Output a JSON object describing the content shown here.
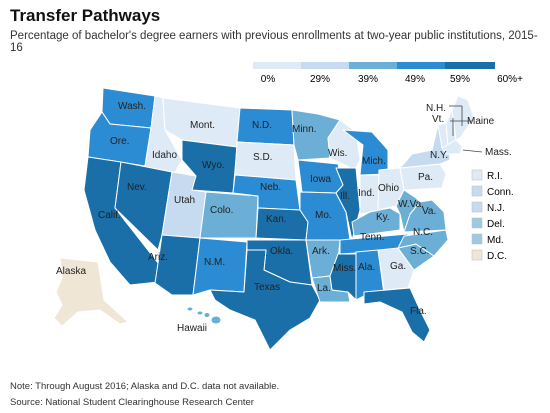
{
  "title": "Transfer Pathways",
  "subtitle": "Percentage of bachelor's degree earners with previous enrollments at two-year public institutions, 2015-16",
  "note": "Note: Through August 2016; Alaska and D.C. data not available.",
  "source": "Source: National Student Clearinghouse Research Center",
  "legend": {
    "labels": [
      "0%",
      "29%",
      "39%",
      "49%",
      "59%",
      "60%+"
    ],
    "colors": [
      "#deebf7",
      "#c6dbef",
      "#6baed6",
      "#2b8cd3",
      "#1b6fa8"
    ]
  },
  "na_color": "#efe6d6",
  "small_states": [
    {
      "label": "R.I.",
      "color": "#deebf7"
    },
    {
      "label": "Conn.",
      "color": "#c6dbef"
    },
    {
      "label": "N.J.",
      "color": "#c6dbef"
    },
    {
      "label": "Del.",
      "color": "#9ecae1"
    },
    {
      "label": "Md.",
      "color": "#9ecae1"
    },
    {
      "label": "D.C.",
      "color": "#efe6d6"
    }
  ],
  "states": [
    {
      "label": "Wash.",
      "color": "#2b8cd3"
    },
    {
      "label": "Ore.",
      "color": "#2b8cd3"
    },
    {
      "label": "Calif.",
      "color": "#1b6fa8"
    },
    {
      "label": "Idaho",
      "color": "#deebf7"
    },
    {
      "label": "Nev.",
      "color": "#1b6fa8"
    },
    {
      "label": "Utah",
      "color": "#c6dbef"
    },
    {
      "label": "Ariz.",
      "color": "#1b6fa8"
    },
    {
      "label": "Mont.",
      "color": "#deebf7"
    },
    {
      "label": "Wyo.",
      "color": "#1b6fa8"
    },
    {
      "label": "Colo.",
      "color": "#6baed6"
    },
    {
      "label": "N.M.",
      "color": "#2b8cd3"
    },
    {
      "label": "N.D.",
      "color": "#2b8cd3"
    },
    {
      "label": "S.D.",
      "color": "#deebf7"
    },
    {
      "label": "Neb.",
      "color": "#2b8cd3"
    },
    {
      "label": "Kan.",
      "color": "#1b6fa8"
    },
    {
      "label": "Okla.",
      "color": "#1b6fa8"
    },
    {
      "label": "Texas",
      "color": "#1b6fa8"
    },
    {
      "label": "Minn.",
      "color": "#6baed6"
    },
    {
      "label": "Iowa",
      "color": "#2b8cd3"
    },
    {
      "label": "Mo.",
      "color": "#2b8cd3"
    },
    {
      "label": "Ark.",
      "color": "#6baed6"
    },
    {
      "label": "La.",
      "color": "#6baed6"
    },
    {
      "label": "Wis.",
      "color": "#deebf7"
    },
    {
      "label": "Ill.",
      "color": "#1b6fa8"
    },
    {
      "label": "Mich.",
      "color": "#2b8cd3"
    },
    {
      "label": "Ind.",
      "color": "#deebf7"
    },
    {
      "label": "Ohio",
      "color": "#deebf7"
    },
    {
      "label": "Ky.",
      "color": "#6baed6"
    },
    {
      "label": "Tenn.",
      "color": "#2b8cd3"
    },
    {
      "label": "Miss.",
      "color": "#1b6fa8"
    },
    {
      "label": "Ala.",
      "color": "#2b8cd3"
    },
    {
      "label": "Ga.",
      "color": "#deebf7"
    },
    {
      "label": "Fla.",
      "color": "#1b6fa8"
    },
    {
      "label": "S.C.",
      "color": "#6baed6"
    },
    {
      "label": "N.C.",
      "color": "#6baed6"
    },
    {
      "label": "Va.",
      "color": "#6baed6"
    },
    {
      "label": "W.Va.",
      "color": "#6baed6"
    },
    {
      "label": "Pa.",
      "color": "#deebf7"
    },
    {
      "label": "N.Y.",
      "color": "#c6dbef"
    },
    {
      "label": "Vt.",
      "color": "#deebf7"
    },
    {
      "label": "N.H.",
      "color": "#deebf7"
    },
    {
      "label": "Maine",
      "color": "#deebf7"
    },
    {
      "label": "Mass.",
      "color": "#deebf7"
    },
    {
      "label": "Alaska",
      "color": "#efe6d6"
    },
    {
      "label": "Hawaii",
      "color": "#6baed6"
    }
  ]
}
